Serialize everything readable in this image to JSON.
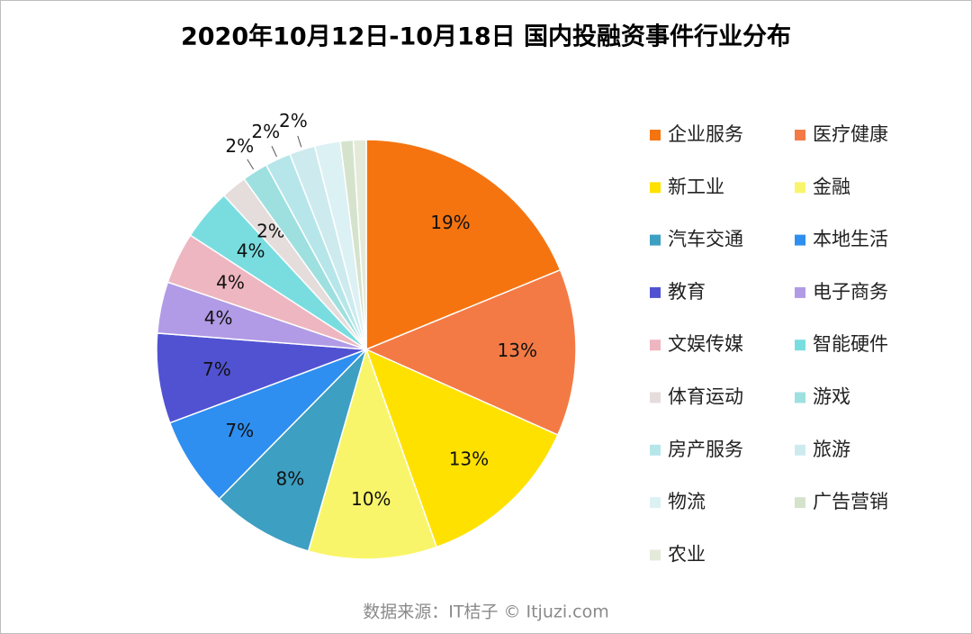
{
  "chart_data": {
    "type": "pie",
    "title": "2020年10月12日-10月18日 国内投融资事件行业分布",
    "source": "数据来源：IT桔子 © Itjuzi.com",
    "categories": [
      "企业服务",
      "医疗健康",
      "新工业",
      "金融",
      "汽车交通",
      "本地生活",
      "教育",
      "电子商务",
      "文娱传媒",
      "智能硬件",
      "体育运动",
      "游戏",
      "房产服务",
      "旅游",
      "物流",
      "广告营销",
      "农业"
    ],
    "values": [
      19,
      13,
      13,
      10,
      8,
      7,
      7,
      4,
      4,
      4,
      2,
      2,
      2,
      2,
      2,
      1,
      1
    ],
    "value_labels": [
      "19%",
      "13%",
      "13%",
      "10%",
      "8%",
      "7%",
      "7%",
      "4%",
      "4%",
      "4%",
      "2%",
      "2%",
      "2%",
      "2%",
      null,
      null,
      null
    ],
    "colors": [
      "#f57410",
      "#f47a45",
      "#ffe100",
      "#f9f56a",
      "#3d9fc1",
      "#2e8ff0",
      "#5152d1",
      "#b19be6",
      "#eeb6c0",
      "#79dde0",
      "#e5dcdc",
      "#9ee0df",
      "#b6e6ea",
      "#cdebee",
      "#dcf1f4",
      "#d5e3cc",
      "#e4ead9"
    ],
    "legend": "right"
  }
}
